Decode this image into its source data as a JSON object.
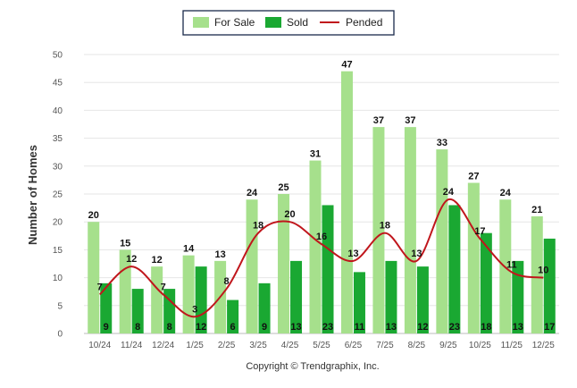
{
  "chart_data": {
    "type": "bar",
    "categories": [
      "10/24",
      "11/24",
      "12/24",
      "1/25",
      "2/25",
      "3/25",
      "4/25",
      "5/25",
      "6/25",
      "7/25",
      "8/25",
      "9/25",
      "10/25",
      "11/25",
      "12/25"
    ],
    "series": [
      {
        "name": "For Sale",
        "kind": "bar",
        "color": "#a6e08c",
        "values": [
          20,
          15,
          12,
          14,
          13,
          24,
          25,
          31,
          47,
          37,
          37,
          33,
          27,
          24,
          21
        ]
      },
      {
        "name": "Sold",
        "kind": "bar",
        "color": "#1aa832",
        "values": [
          9,
          8,
          8,
          12,
          6,
          9,
          13,
          23,
          11,
          13,
          12,
          23,
          18,
          13,
          17
        ]
      },
      {
        "name": "Pended",
        "kind": "line",
        "color": "#c0161c",
        "values": [
          7,
          12,
          7,
          3,
          8,
          18,
          20,
          16,
          13,
          18,
          13,
          24,
          17,
          11,
          10
        ]
      }
    ],
    "ylabel": "Number of Homes",
    "xlabel": "",
    "ylim": [
      0,
      50
    ],
    "yticks": [
      0,
      5,
      10,
      15,
      20,
      25,
      30,
      35,
      40,
      45,
      50
    ],
    "legend_position": "top-center",
    "grid": true,
    "copyright": "Copyright © Trendgraphix, Inc."
  }
}
